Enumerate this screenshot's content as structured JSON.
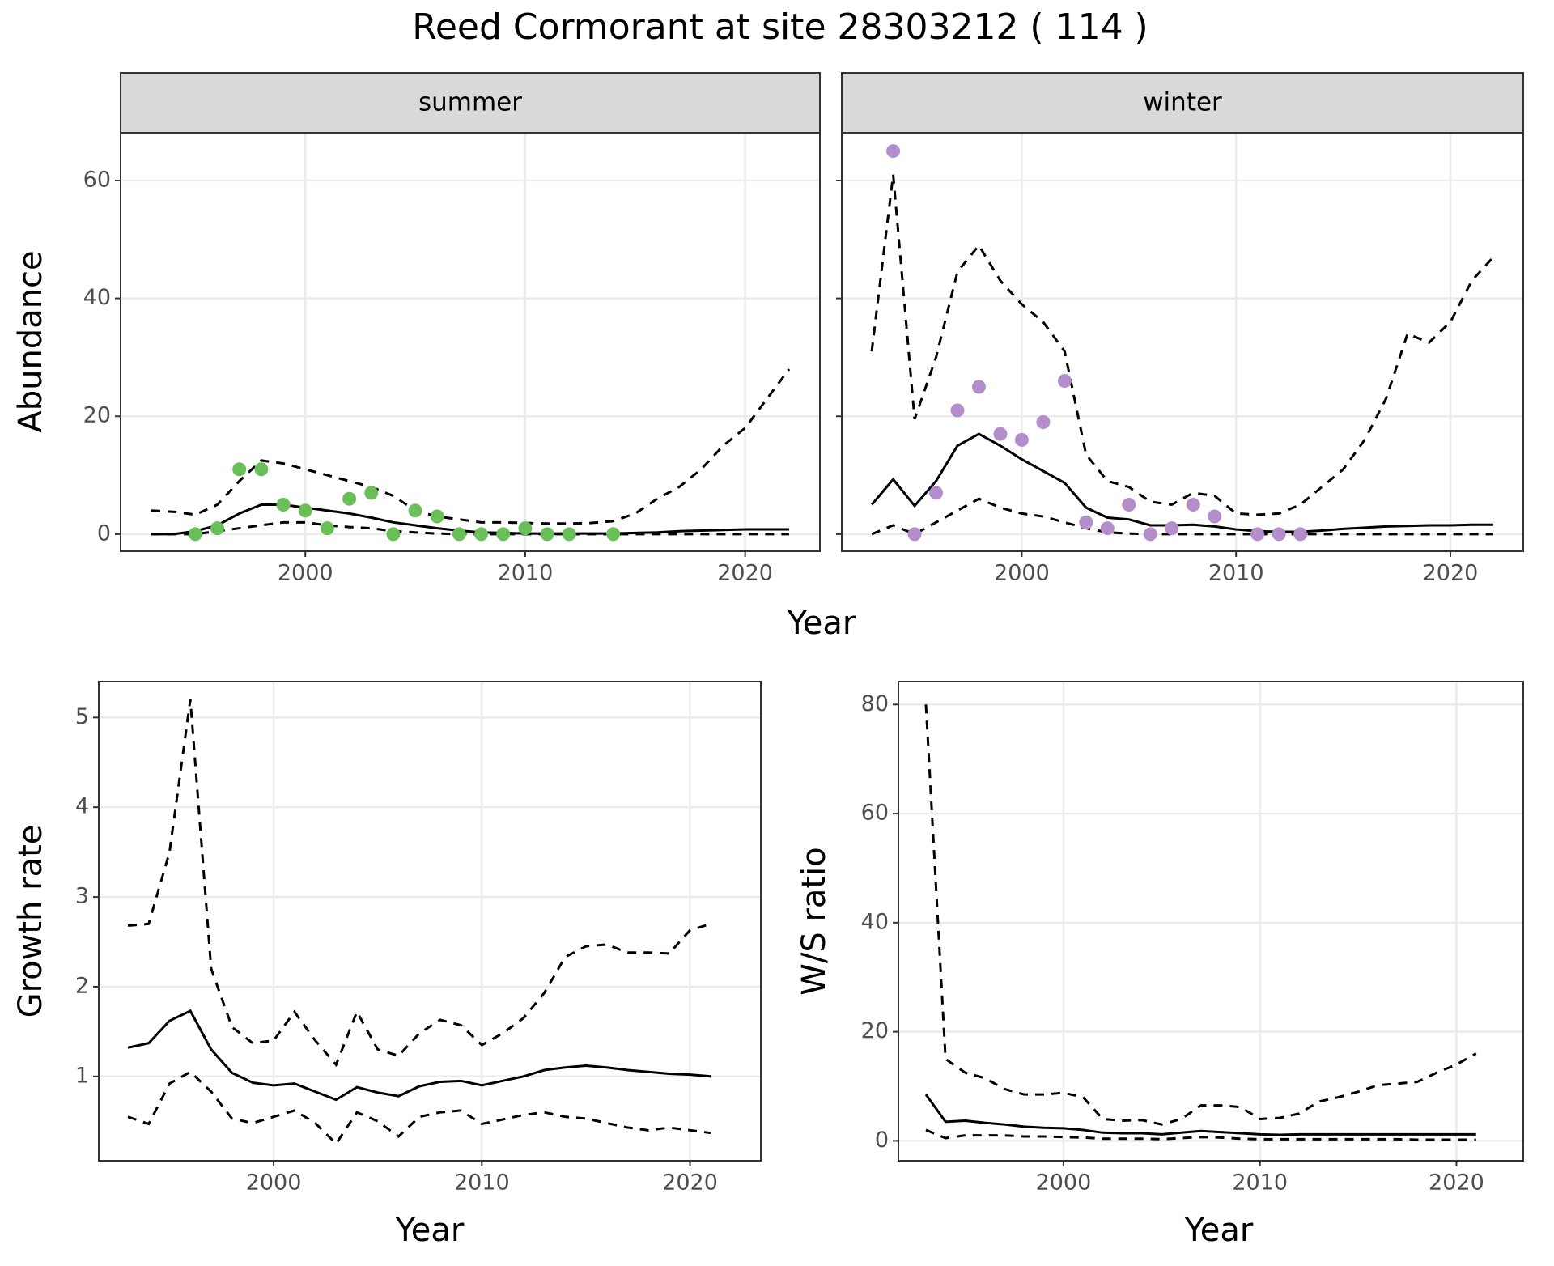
{
  "title": "Reed Cormorant at site 28303212 ( 114 )",
  "chart_data": [
    {
      "type": "line",
      "strip": "summer",
      "ylabel": "Abundance",
      "xlabel": "Year",
      "grid": true,
      "xlim": [
        1991.6,
        2023.4
      ],
      "xticks": [
        2000,
        2010,
        2020
      ],
      "ylim": [
        -2.9,
        68.1
      ],
      "yticks": [
        0,
        20,
        40,
        60
      ],
      "x": [
        1993,
        1994,
        1995,
        1996,
        1997,
        1998,
        1999,
        2000,
        2001,
        2002,
        2003,
        2004,
        2005,
        2006,
        2007,
        2008,
        2009,
        2010,
        2011,
        2012,
        2013,
        2014,
        2015,
        2016,
        2017,
        2018,
        2019,
        2020,
        2021,
        2022
      ],
      "series": [
        {
          "color": "#000000",
          "style": "solid",
          "values": [
            0,
            0,
            0.5,
            1.5,
            3.5,
            5,
            5,
            4.5,
            4,
            3.5,
            2.8,
            2,
            1.5,
            1,
            0.6,
            0.3,
            0.2,
            0.1,
            0.1,
            0.1,
            0.1,
            0.1,
            0.2,
            0.3,
            0.5,
            0.6,
            0.7,
            0.8,
            0.8,
            0.8
          ]
        },
        {
          "color": "#000000",
          "style": "dashed",
          "values": [
            4,
            3.8,
            3.3,
            5,
            9,
            12.5,
            12,
            11,
            10,
            9,
            8,
            6.5,
            4,
            3,
            2.5,
            2,
            2,
            1.9,
            1.8,
            1.8,
            1.9,
            2.2,
            3.5,
            6,
            8,
            11,
            15,
            18,
            23,
            28
          ]
        },
        {
          "color": "#000000",
          "style": "dashed",
          "values": [
            0,
            0,
            0,
            0.5,
            1,
            1.5,
            2,
            2,
            1.5,
            1.2,
            1,
            0.5,
            0.3,
            0.1,
            0,
            0,
            0,
            0,
            0,
            0,
            0,
            0,
            0,
            0,
            0,
            0,
            0,
            0,
            0,
            0
          ]
        }
      ],
      "points": {
        "color": "#6bbf59",
        "x": [
          1995,
          1996,
          1997,
          1998,
          1999,
          2000,
          2001,
          2002,
          2003,
          2004,
          2005,
          2006,
          2007,
          2008,
          2009,
          2010,
          2011,
          2012,
          2014
        ],
        "values": [
          0,
          1,
          11,
          11,
          5,
          4,
          1,
          6,
          7,
          0,
          4,
          3,
          0,
          0,
          0,
          1,
          0,
          0,
          0
        ]
      }
    },
    {
      "type": "line",
      "strip": "winter",
      "ytick_labels": false,
      "grid": true,
      "xlim": [
        1991.6,
        2023.4
      ],
      "xticks": [
        2000,
        2010,
        2020
      ],
      "ylim": [
        -2.9,
        68.1
      ],
      "yticks": [
        0,
        20,
        40,
        60
      ],
      "x": [
        1993,
        1994,
        1995,
        1996,
        1997,
        1998,
        1999,
        2000,
        2001,
        2002,
        2003,
        2004,
        2005,
        2006,
        2007,
        2008,
        2009,
        2010,
        2011,
        2012,
        2013,
        2014,
        2015,
        2016,
        2017,
        2018,
        2019,
        2020,
        2021,
        2022
      ],
      "series": [
        {
          "color": "#000000",
          "style": "solid",
          "values": [
            5,
            9.3,
            4.8,
            9,
            15,
            17,
            15,
            12.7,
            10.7,
            8.7,
            4.5,
            2.8,
            2.5,
            1.5,
            1.5,
            1.6,
            1.3,
            0.8,
            0.5,
            0.4,
            0.4,
            0.6,
            0.9,
            1.1,
            1.3,
            1.4,
            1.5,
            1.5,
            1.6,
            1.6
          ]
        },
        {
          "color": "#000000",
          "style": "dashed",
          "values": [
            31,
            61,
            19.5,
            30,
            44.5,
            49,
            43,
            39,
            36,
            31,
            13.5,
            9,
            8,
            5.5,
            5,
            7,
            6.5,
            3.5,
            3.3,
            3.5,
            5,
            8,
            11,
            16,
            23,
            34,
            32.5,
            36,
            43,
            47
          ]
        },
        {
          "color": "#000000",
          "style": "dashed",
          "values": [
            0,
            1.5,
            0,
            2,
            4,
            6,
            4.5,
            3.5,
            3,
            2,
            1,
            0.3,
            0.1,
            0,
            0,
            0,
            0,
            0,
            0,
            0,
            0,
            0,
            0,
            0,
            0,
            0,
            0,
            0,
            0,
            0
          ]
        }
      ],
      "points": {
        "color": "#b48ecb",
        "x": [
          1994,
          1995,
          1996,
          1997,
          1998,
          1999,
          2000,
          2001,
          2002,
          2003,
          2004,
          2005,
          2006,
          2007,
          2008,
          2009,
          2011,
          2012,
          2013
        ],
        "values": [
          65,
          0,
          7,
          21,
          25,
          17,
          16,
          19,
          26,
          2,
          1,
          5,
          0,
          1,
          5,
          3,
          0,
          0,
          0
        ]
      }
    },
    {
      "type": "line",
      "ylabel": "Growth rate",
      "xlabel": "Year",
      "grid": true,
      "xlim": [
        1991.6,
        2023.4
      ],
      "xticks": [
        2000,
        2010,
        2020
      ],
      "ylim": [
        0.06,
        5.4
      ],
      "yticks": [
        1,
        2,
        3,
        4,
        5
      ],
      "x": [
        1993,
        1994,
        1995,
        1996,
        1997,
        1998,
        1999,
        2000,
        2001,
        2002,
        2003,
        2004,
        2005,
        2006,
        2007,
        2008,
        2009,
        2010,
        2011,
        2012,
        2013,
        2014,
        2015,
        2016,
        2017,
        2018,
        2019,
        2020,
        2021
      ],
      "series": [
        {
          "color": "#000000",
          "style": "solid",
          "values": [
            1.32,
            1.37,
            1.62,
            1.73,
            1.3,
            1.04,
            0.93,
            0.9,
            0.92,
            0.83,
            0.74,
            0.88,
            0.82,
            0.78,
            0.89,
            0.94,
            0.95,
            0.9,
            0.95,
            1.0,
            1.07,
            1.1,
            1.12,
            1.1,
            1.07,
            1.05,
            1.03,
            1.02,
            1.0
          ]
        },
        {
          "color": "#000000",
          "style": "dashed",
          "values": [
            2.68,
            2.7,
            3.5,
            5.2,
            2.2,
            1.55,
            1.37,
            1.4,
            1.72,
            1.4,
            1.13,
            1.72,
            1.3,
            1.23,
            1.48,
            1.63,
            1.57,
            1.35,
            1.48,
            1.65,
            1.93,
            2.33,
            2.45,
            2.47,
            2.38,
            2.38,
            2.37,
            2.63,
            2.7
          ]
        },
        {
          "color": "#000000",
          "style": "dashed",
          "values": [
            0.55,
            0.47,
            0.92,
            1.05,
            0.83,
            0.53,
            0.48,
            0.55,
            0.62,
            0.48,
            0.25,
            0.6,
            0.5,
            0.33,
            0.55,
            0.6,
            0.62,
            0.47,
            0.52,
            0.57,
            0.6,
            0.55,
            0.53,
            0.48,
            0.43,
            0.4,
            0.43,
            0.4,
            0.37
          ]
        }
      ]
    },
    {
      "type": "line",
      "ylabel": "W/S ratio",
      "xlabel": "Year",
      "grid": true,
      "xlim": [
        1991.6,
        2023.4
      ],
      "xticks": [
        2000,
        2010,
        2020
      ],
      "ylim": [
        -3.65,
        84.2
      ],
      "yticks": [
        0,
        20,
        40,
        60,
        80
      ],
      "x": [
        1993,
        1994,
        1995,
        1996,
        1997,
        1998,
        1999,
        2000,
        2001,
        2002,
        2003,
        2004,
        2005,
        2006,
        2007,
        2008,
        2009,
        2010,
        2011,
        2012,
        2013,
        2014,
        2015,
        2016,
        2017,
        2018,
        2019,
        2020,
        2021
      ],
      "series": [
        {
          "color": "#000000",
          "style": "solid",
          "values": [
            8.5,
            3.5,
            3.7,
            3.3,
            3,
            2.6,
            2.4,
            2.3,
            2,
            1.5,
            1.4,
            1.4,
            1.2,
            1.5,
            1.8,
            1.6,
            1.4,
            1.2,
            1.1,
            1.2,
            1.2,
            1.2,
            1.2,
            1.2,
            1.2,
            1.2,
            1.2,
            1.2,
            1.2
          ]
        },
        {
          "color": "#000000",
          "style": "dashed",
          "values": [
            80,
            15,
            12.5,
            11.5,
            9.5,
            8.5,
            8.5,
            8.8,
            8,
            4,
            3.7,
            3.8,
            3,
            4,
            6.5,
            6.5,
            6.2,
            4,
            4.2,
            5,
            7.2,
            8,
            9,
            10.2,
            10.5,
            10.8,
            12.5,
            14,
            16
          ]
        },
        {
          "color": "#000000",
          "style": "dashed",
          "values": [
            2,
            0.5,
            1,
            1,
            1,
            0.8,
            0.8,
            0.7,
            0.6,
            0.4,
            0.4,
            0.4,
            0.3,
            0.5,
            0.7,
            0.6,
            0.4,
            0.3,
            0.3,
            0.3,
            0.3,
            0.3,
            0.3,
            0.3,
            0.3,
            0.2,
            0.2,
            0.2,
            0.2
          ]
        }
      ]
    }
  ]
}
